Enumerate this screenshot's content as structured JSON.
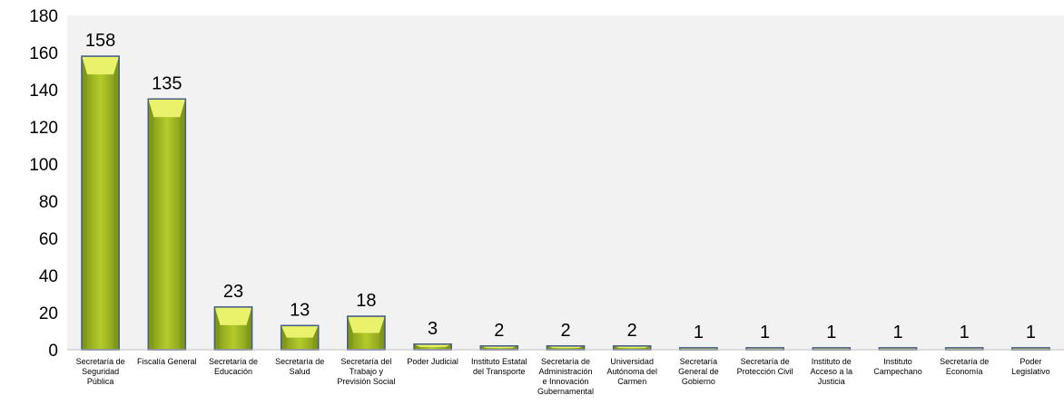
{
  "chart_data": {
    "type": "bar",
    "title": "",
    "xlabel": "",
    "ylabel": "",
    "ylim": [
      0,
      180
    ],
    "yticks": [
      0,
      20,
      40,
      60,
      80,
      100,
      120,
      140,
      160,
      180
    ],
    "grid": false,
    "legend": "none",
    "colors": {
      "plot_background": "#f2f2f2",
      "bar_fill": "#b4cc2a",
      "bar_highlight": "#e9f26a",
      "bar_shadow": "#7d9417",
      "bar_outline": "#4a5f86"
    },
    "categories": [
      [
        "Secretaría de",
        "Seguridad",
        "Pública"
      ],
      [
        "Fiscalía General"
      ],
      [
        "Secretaría de",
        "Educación"
      ],
      [
        "Secretaría de",
        "Salud"
      ],
      [
        "Secretaría del",
        "Trabajo y",
        "Previsión Social"
      ],
      [
        "Poder Judicial"
      ],
      [
        "Instituto Estatal",
        "del Transporte"
      ],
      [
        "Secretaría de",
        "Administración",
        "e Innovación",
        "Gubernamental"
      ],
      [
        "Universidad",
        "Autónoma del",
        "Carmen"
      ],
      [
        "Secretaría",
        "General de",
        "Gobierno"
      ],
      [
        "Secretaría de",
        "Protección Civil"
      ],
      [
        "Instituto de",
        "Acceso a la",
        "Justicia"
      ],
      [
        "Instituto",
        "Campechano"
      ],
      [
        "Secretaría de",
        "Economía"
      ],
      [
        "Poder",
        "Legislativo"
      ]
    ],
    "values": [
      158,
      135,
      23,
      13,
      18,
      3,
      2,
      2,
      2,
      1,
      1,
      1,
      1,
      1,
      1
    ],
    "data_labels": [
      "158",
      "135",
      "23",
      "13",
      "18",
      "3",
      "2",
      "2",
      "2",
      "1",
      "1",
      "1",
      "1",
      "1",
      "1"
    ]
  }
}
